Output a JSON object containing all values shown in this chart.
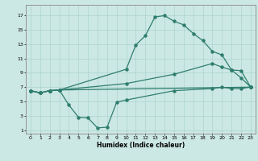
{
  "xlabel": "Humidex (Indice chaleur)",
  "bg_color": "#cce8e4",
  "line_color": "#2e7d6e",
  "grid_color": "#aad4cc",
  "xlim": [
    -0.5,
    23.5
  ],
  "ylim": [
    0.5,
    18.5
  ],
  "xticks": [
    0,
    1,
    2,
    3,
    4,
    5,
    6,
    7,
    8,
    9,
    10,
    11,
    12,
    13,
    14,
    15,
    16,
    17,
    18,
    19,
    20,
    21,
    22,
    23
  ],
  "yticks": [
    1,
    3,
    5,
    7,
    9,
    11,
    13,
    15,
    17
  ],
  "line1_x": [
    0,
    1,
    2,
    3,
    10,
    11,
    12,
    13,
    14,
    15,
    16,
    17,
    18,
    19,
    20,
    21,
    22,
    23
  ],
  "line1_y": [
    6.5,
    6.2,
    6.5,
    6.6,
    9.5,
    12.9,
    14.2,
    16.8,
    17.0,
    16.2,
    15.7,
    14.5,
    13.5,
    12.0,
    11.5,
    9.4,
    9.3,
    7.0
  ],
  "line2_x": [
    0,
    1,
    2,
    3,
    23
  ],
  "line2_y": [
    6.5,
    6.2,
    6.5,
    6.6,
    7.0
  ],
  "line3_x": [
    0,
    1,
    2,
    3,
    10,
    15,
    19,
    20,
    21,
    22,
    23
  ],
  "line3_y": [
    6.5,
    6.2,
    6.5,
    6.6,
    7.5,
    8.8,
    10.3,
    9.8,
    9.4,
    8.3,
    7.0
  ],
  "line4_x": [
    0,
    1,
    2,
    3,
    4,
    5,
    6,
    7,
    8,
    9,
    10,
    15,
    19,
    20,
    21,
    22,
    23
  ],
  "line4_y": [
    6.5,
    6.2,
    6.5,
    6.6,
    4.5,
    2.8,
    2.7,
    1.3,
    1.4,
    4.9,
    5.2,
    6.5,
    6.8,
    7.0,
    6.8,
    6.8,
    7.0
  ]
}
